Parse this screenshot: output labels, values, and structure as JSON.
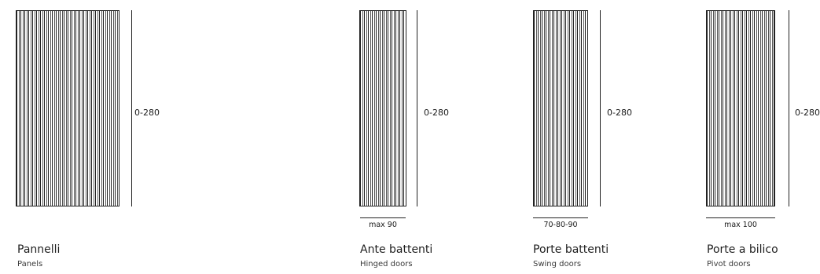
{
  "items": [
    {
      "title": "Pannelli",
      "subtitle": "Panels",
      "height_label": "0-280",
      "width_label": ""
    },
    {
      "title": "Ante battenti",
      "subtitle": "Hinged doors",
      "height_label": "0-280",
      "width_label": "max 90"
    },
    {
      "title": "Porte battenti",
      "subtitle": "Swing doors",
      "height_label": "0-280",
      "width_label": "70-80-90"
    },
    {
      "title": "Porte a bilico",
      "subtitle": "Pivot doors",
      "height_label": "0-280",
      "width_label": "max 100"
    }
  ],
  "colors": {
    "line": "#222222",
    "text": "#1a1a1a",
    "background": "#ffffff"
  }
}
